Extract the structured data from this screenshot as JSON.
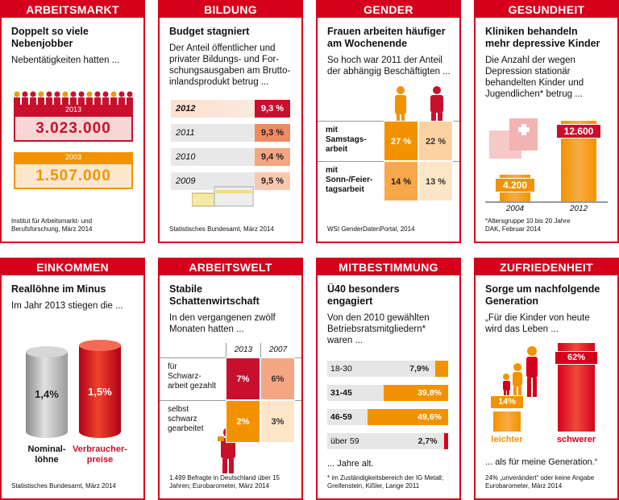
{
  "panels": [
    {
      "category": "ARBEITSMARKT",
      "headline": "Doppelt so viele\nNebenjobber",
      "intro": "Nebentätigkeiten hatten ...",
      "years": [
        "2013",
        "2003"
      ],
      "figures": [
        "3.023.000",
        "1.507.000"
      ],
      "source": "Institut für Arbeitsmarkt- und\nBerufsforschung, März 2014"
    },
    {
      "category": "BILDUNG",
      "headline": "Budget stagniert",
      "intro": "Der Anteil öffentlicher und\nprivater Bildungs- und For-\nschungsausgaben am Brutto-\ninlandsprodukt betrug ...",
      "years": [
        "2012",
        "2011",
        "2010",
        "2009"
      ],
      "figures": [
        "9,3 %",
        "9,3 %",
        "9,4 %",
        "9,5 %"
      ],
      "source": "Statistisches Bundesamt, März 2014"
    },
    {
      "category": "GENDER",
      "headline": "Frauen arbeiten häufiger\nam Wochenende",
      "intro": "So hoch war 2011 der Anteil\nder abhängig Beschäftigten ...",
      "rows": [
        "mit\nSamstags-\narbeit",
        "mit\nSonn-/Feier-\ntagsarbeit"
      ],
      "cells": [
        [
          "27 %",
          "22 %"
        ],
        [
          "14 %",
          "13 %"
        ]
      ],
      "source": "WSI GenderDatenPortal, 2014"
    },
    {
      "category": "GESUNDHEIT",
      "headline": "Kliniken behandeln\nmehr depressive Kinder",
      "intro": "Die Anzahl der wegen\nDepression stationär\nbehandelten Kinder und\nJugendlichen* betrug ...",
      "years": [
        "2004",
        "2012"
      ],
      "values": [
        4200,
        12600
      ],
      "value_labels": [
        "4.200",
        "12.600"
      ],
      "note": "*Altersgruppe 10 bis 20 Jahre",
      "source": "DAK, Februar 2014"
    },
    {
      "category": "EINKOMMEN",
      "headline": "Reallöhne im Minus",
      "intro": "Im Jahr 2013 stiegen die ...",
      "groups": [
        "Nominal-\nlöhne",
        "Verbraucher-\npreise"
      ],
      "values": [
        1.4,
        1.5
      ],
      "value_labels": [
        "1,4%",
        "1,5%"
      ],
      "source": "Statistisches Bundesamt, März 2014"
    },
    {
      "category": "ARBEITSWELT",
      "headline": "Stabile\nSchattenwirtschaft",
      "intro": "In den vergangenen zwölf\nMonaten hatten ...",
      "columns": [
        "2013",
        "2007"
      ],
      "rows": [
        "für\nSchwarz-\narbeit gezahlt",
        "selbst\nschwarz\ngearbeitet"
      ],
      "cells": [
        [
          "7%",
          "6%"
        ],
        [
          "2%",
          "3%"
        ]
      ],
      "source": "1.499 Befragte in Deutschland über 15\nJahren; Eurobarometer, März 2014"
    },
    {
      "category": "MITBESTIMMUNG",
      "headline": "Ü40 besonders\nengagiert",
      "intro": "Von den 2010 gewählten\nBetriebsratsmitgliedern*\nwaren ...",
      "groups": [
        "18-30",
        "31-45",
        "46-59",
        "über 59"
      ],
      "values": [
        7.9,
        39.8,
        49.6,
        2.7
      ],
      "value_labels": [
        "7,9%",
        "39,8%",
        "49,6%",
        "2,7%"
      ],
      "outro": "... Jahre alt.",
      "source": "* im Zuständigkeitsbereich der IG Metall;\nGreifenstein, Kißler, Lange 2011"
    },
    {
      "category": "ZUFRIEDENHEIT",
      "headline": "Sorge um nachfolgende\nGeneration",
      "intro": "„Für die Kinder von heute\nwird das Leben ...",
      "groups": [
        "leichter",
        "schwerer"
      ],
      "values": [
        14,
        62
      ],
      "value_labels": [
        "14%",
        "62%"
      ],
      "outro": "... als für meine Generation.“",
      "note": "24% „unverändert“ oder keine Angabe",
      "source": "Eurobarometer, März 2014"
    }
  ]
}
